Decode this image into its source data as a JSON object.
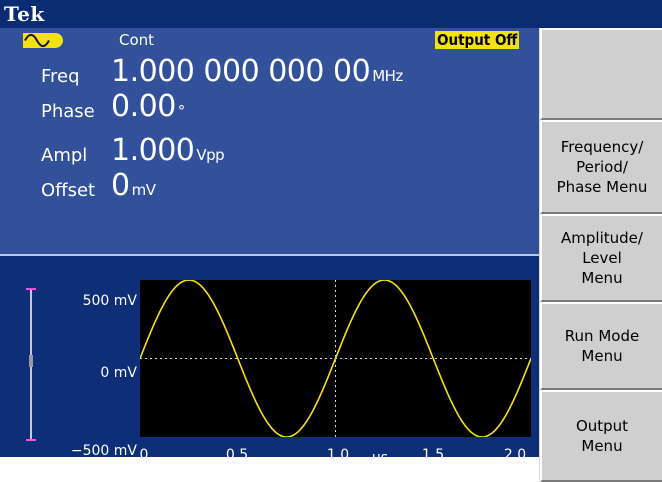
{
  "header": {
    "brand": "Tek"
  },
  "status": {
    "mode": "Cont",
    "output_state": "Output Off",
    "waveform_icon": "sine-wave-icon"
  },
  "params": {
    "freq": {
      "label": "Freq",
      "value": "1.000 000 000 00",
      "unit": "MHz"
    },
    "phase": {
      "label": "Phase",
      "value": "0.00",
      "unit": "°"
    },
    "ampl": {
      "label": "Ampl",
      "value": "1.000",
      "unit": "Vpp"
    },
    "offset": {
      "label": "Offset",
      "value": "0",
      "unit": "mV"
    }
  },
  "plot": {
    "y_labels": [
      "500 mV",
      "0 mV",
      "−500 mV"
    ],
    "x_labels": [
      "0",
      "0.5",
      "1.0",
      "1.5",
      "2.0"
    ],
    "x_unit": "μs"
  },
  "menu": {
    "buttons": [
      {
        "label": ""
      },
      {
        "label": "Frequency/\nPeriod/\nPhase Menu"
      },
      {
        "label": "Amplitude/\nLevel\nMenu"
      },
      {
        "label": "Run Mode\nMenu"
      },
      {
        "label": "Output\nMenu"
      }
    ]
  },
  "colors": {
    "accent": "#f4e210",
    "background": "#32519a",
    "titlebar": "#0b2b73",
    "trace": "#f4e210"
  },
  "chart_data": {
    "type": "line",
    "x": [
      0,
      0.25,
      0.5,
      0.75,
      1.0,
      1.25,
      1.5,
      1.75,
      2.0
    ],
    "series": [
      {
        "values": [
          0,
          500,
          0,
          -500,
          0,
          500,
          0,
          -500,
          0
        ]
      }
    ],
    "xlim": [
      0,
      2.0
    ],
    "ylim": [
      -500,
      500
    ],
    "xlabel": "μs",
    "ylabel": "",
    "grid": true
  }
}
